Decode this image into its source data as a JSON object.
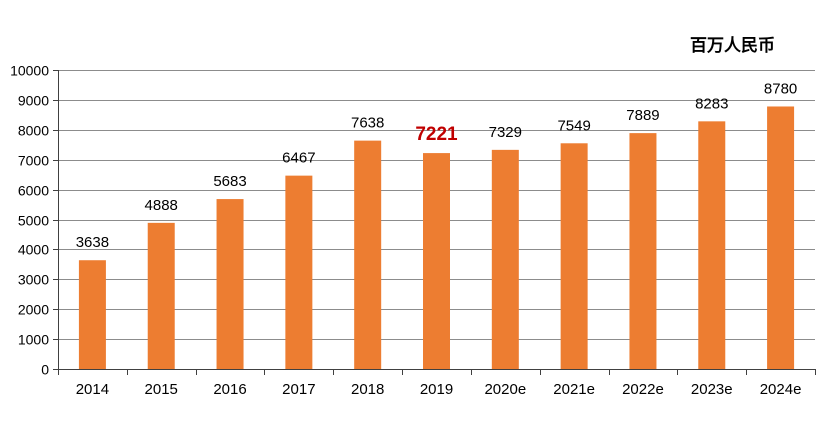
{
  "unit_label": "百万人民币",
  "colors": {
    "bar": "#ED7D31",
    "highlight_label": "#C00000",
    "axis": "#404040",
    "grid": "#8C8C8C"
  },
  "chart_data": {
    "type": "bar",
    "title": "",
    "xlabel": "",
    "ylabel": "",
    "unit": "百万人民币",
    "categories": [
      "2014",
      "2015",
      "2016",
      "2017",
      "2018",
      "2019",
      "2020e",
      "2021e",
      "2022e",
      "2023e",
      "2024e"
    ],
    "values": [
      3638,
      4888,
      5683,
      6467,
      7638,
      7221,
      7329,
      7549,
      7889,
      8283,
      8780
    ],
    "highlight_index": 5,
    "ylim": [
      0,
      10000
    ],
    "yticks": [
      0,
      1000,
      2000,
      3000,
      4000,
      5000,
      6000,
      7000,
      8000,
      9000,
      10000
    ],
    "grid": true,
    "legend": "none"
  }
}
